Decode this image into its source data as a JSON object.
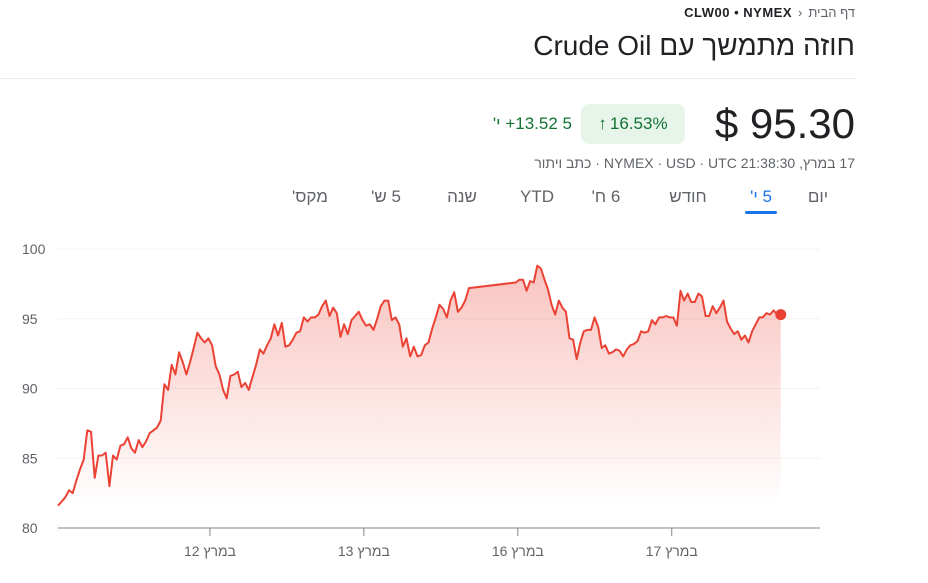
{
  "breadcrumb": {
    "home": "דף הבית",
    "symbol": "CLW00 • NYMEX"
  },
  "title": "חוזה מתמשך עם Crude Oil",
  "quote": {
    "price": "$ 95.30",
    "change_pct": "16.53%",
    "change_abs": "+13.52",
    "change_period": "5 י'",
    "info": "17 במרץ, 21:38:30 NYMEX · USD · UTC · כתב ויתור"
  },
  "tabs": [
    {
      "label": "יום"
    },
    {
      "label": "5 י'",
      "active": true
    },
    {
      "label": "חודש"
    },
    {
      "label": "6 ח'"
    },
    {
      "label": "YTD"
    },
    {
      "label": "שנה"
    },
    {
      "label": "5 ש'"
    },
    {
      "label": "מקס'"
    }
  ],
  "colors": {
    "line": "#ea4335",
    "positive": "#137333",
    "accent": "#1a73e8"
  },
  "chart_data": {
    "type": "line",
    "title": "",
    "xlabel": "",
    "ylabel": "",
    "ylim": [
      80,
      100
    ],
    "yticks": [
      80,
      85,
      90,
      95,
      100
    ],
    "xlim": [
      0,
      4.95
    ],
    "xticks": [
      {
        "x": 0.987,
        "label": "12 במרץ"
      },
      {
        "x": 1.987,
        "label": "13 במרץ"
      },
      {
        "x": 2.987,
        "label": "16 במרץ"
      },
      {
        "x": 3.987,
        "label": "17 במרץ"
      }
    ],
    "grid": true,
    "segments": [
      {
        "x_start": 0,
        "x_end": 2.669,
        "values": [
          81.6,
          81.9,
          82.2,
          82.7,
          82.5,
          83.4,
          84.2,
          84.9,
          87.0,
          86.9,
          83.6,
          85.2,
          85.2,
          85.4,
          83.0,
          85.2,
          84.9,
          85.9,
          86.0,
          86.5,
          85.7,
          85.4,
          86.3,
          85.8,
          86.2,
          86.8,
          87.0,
          87.2,
          87.7,
          90.3,
          89.9,
          91.7,
          91.0,
          92.6,
          91.9,
          91.0,
          91.9,
          92.9,
          94.0,
          93.6,
          93.3,
          93.6,
          93.1,
          91.6,
          91.0,
          89.9,
          89.3,
          90.9,
          91.0,
          91.2,
          90.1,
          90.4,
          89.9,
          90.8,
          91.7,
          92.8,
          92.5,
          93.1,
          93.6,
          94.6,
          93.8,
          94.7,
          93.0,
          93.1,
          93.5,
          94.0,
          94.1,
          95.1,
          94.8,
          95.1,
          95.1,
          95.3,
          95.9,
          96.3,
          95.2,
          95.8,
          95.4,
          93.7,
          94.6,
          93.9,
          94.9,
          95.2,
          95.5,
          94.9,
          94.5,
          94.6,
          94.2,
          95.0,
          95.9,
          96.3,
          96.3,
          94.9,
          95.1,
          94.6,
          93.0,
          93.6,
          92.3,
          93.0,
          92.3,
          92.4,
          93.1,
          93.3,
          94.3,
          95.1,
          96.0,
          95.7,
          95.1,
          96.3,
          96.9,
          95.5,
          95.8,
          96.3,
          97.2
        ]
      },
      {
        "x_start": 2.974,
        "x_end": 4.695,
        "values": [
          97.6,
          97.8,
          97.8,
          97.0,
          97.7,
          97.6,
          98.8,
          98.6,
          97.8,
          97.1,
          96.0,
          95.3,
          96.3,
          95.8,
          95.5,
          93.6,
          93.5,
          92.1,
          93.3,
          94.1,
          94.2,
          94.2,
          95.1,
          94.4,
          92.9,
          93.1,
          92.5,
          92.6,
          92.8,
          92.7,
          92.3,
          92.8,
          93.1,
          93.2,
          93.4,
          94.1,
          94.0,
          94.1,
          94.9,
          94.6,
          95.1,
          95.1,
          95.2,
          95.1,
          95.1,
          94.5,
          97.0,
          96.3,
          96.8,
          96.2,
          96.2,
          96.8,
          96.6,
          95.2,
          95.2,
          95.9,
          95.4,
          95.8,
          96.3,
          94.8,
          94.3,
          93.9,
          94.1,
          93.5,
          93.8,
          93.3,
          94.1,
          94.6,
          95.1,
          95.1,
          95.4,
          95.3,
          95.6,
          95.3,
          95.3
        ]
      }
    ],
    "last_value": 95.3
  }
}
